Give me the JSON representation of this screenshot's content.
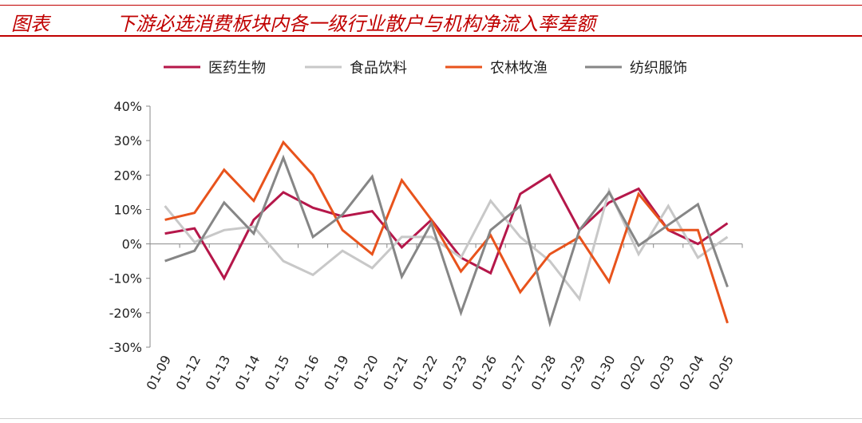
{
  "header": {
    "label": "图表",
    "title": "下游必选消费板块内各一级行业散户与机构净流入率差额"
  },
  "chart_data": {
    "type": "line",
    "categories": [
      "01-09",
      "01-12",
      "01-13",
      "01-14",
      "01-15",
      "01-16",
      "01-19",
      "01-20",
      "01-21",
      "01-22",
      "01-23",
      "01-26",
      "01-27",
      "01-28",
      "01-29",
      "01-30",
      "02-02",
      "02-03",
      "02-04",
      "02-05"
    ],
    "ylim": [
      -30,
      40
    ],
    "yticks": [
      -30,
      -20,
      -10,
      0,
      10,
      20,
      30,
      40
    ],
    "ytick_labels": [
      "-30%",
      "-20%",
      "-10%",
      "0%",
      "10%",
      "20%",
      "30%",
      "40%"
    ],
    "grid": false,
    "legend_position": "top",
    "series": [
      {
        "name": "医药生物",
        "color": "#b5174a",
        "values": [
          3,
          4.5,
          -10,
          7,
          15,
          10.5,
          8,
          9.5,
          -1,
          7,
          -4,
          -8.5,
          14.5,
          20,
          4,
          12,
          16,
          4,
          0,
          6
        ]
      },
      {
        "name": "食品饮料",
        "color": "#c8c8c8",
        "values": [
          11,
          0.5,
          4,
          5,
          -5,
          -9,
          -2,
          -7,
          2,
          2,
          -4,
          12.5,
          2,
          -5,
          -16,
          15.5,
          -3,
          11,
          -4,
          2
        ]
      },
      {
        "name": "农林牧渔",
        "color": "#e8531c",
        "values": [
          7,
          9,
          21.5,
          12.5,
          29.5,
          20,
          4,
          -3,
          18.5,
          7,
          -8,
          2.5,
          -14,
          -3,
          2,
          -11,
          14.5,
          4,
          4,
          -23
        ]
      },
      {
        "name": "纺织服饰",
        "color": "#868686",
        "values": [
          -5,
          -2,
          12,
          3,
          25,
          2,
          8.5,
          19.5,
          -9.5,
          6,
          -20,
          4,
          11,
          -23,
          4,
          15,
          -0.5,
          5.5,
          11.5,
          -12.5
        ]
      }
    ]
  }
}
